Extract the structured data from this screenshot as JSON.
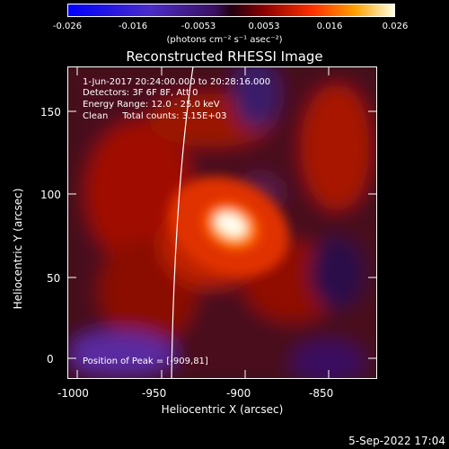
{
  "colorbar": {
    "ticks": [
      "-0.026",
      "-0.016",
      "-0.0053",
      "0.0053",
      "0.016",
      "0.026"
    ],
    "unit_label": "(photons cm⁻² s⁻¹ asec⁻²)"
  },
  "title": "Reconstructed RHESSI Image",
  "info": {
    "time_range": "1-Jun-2017 20:24:00.000 to 20:28:16.000",
    "detectors": "Detectors: 3F 6F 8F, Att 0",
    "energy": "Energy Range: 12.0 - 25.0 keV",
    "method": "Clean     Total counts: 3.15E+03",
    "peak": "Position of Peak = [-909,81]"
  },
  "axes": {
    "xlabel": "Heliocentric X (arcsec)",
    "ylabel": "Heliocentric Y (arcsec)",
    "xticks": [
      "-1000",
      "-950",
      "-900",
      "-850"
    ],
    "yticks": [
      "0",
      "50",
      "100",
      "150"
    ]
  },
  "timestamp": "5-Sep-2022 17:04"
}
